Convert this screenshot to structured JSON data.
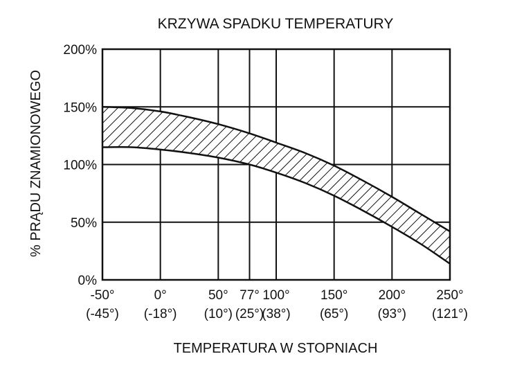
{
  "chart_data": {
    "type": "area",
    "title": "KRZYWA SPADKU TEMPERATURY",
    "xlabel": "TEMPERATURA W STOPNIACH",
    "ylabel": "% PRĄDU ZNAMIONOWEGO",
    "xlim": [
      -50,
      250
    ],
    "ylim": [
      0,
      200
    ],
    "grid": true,
    "x_gridlines": [
      -50,
      0,
      50,
      77,
      100,
      150,
      200,
      250
    ],
    "y_gridlines": [
      0,
      50,
      100,
      150,
      200
    ],
    "x_ticks": [
      {
        "value": -50,
        "label": "-50°",
        "sublabel": "(-45°)"
      },
      {
        "value": 0,
        "label": "0°",
        "sublabel": "(-18°)"
      },
      {
        "value": 50,
        "label": "50°",
        "sublabel": "(10°)"
      },
      {
        "value": 77,
        "label": "77°",
        "sublabel": "(25°)"
      },
      {
        "value": 100,
        "label": "100°",
        "sublabel": "(38°)"
      },
      {
        "value": 150,
        "label": "150°",
        "sublabel": "(65°)"
      },
      {
        "value": 200,
        "label": "200°",
        "sublabel": "(93°)"
      },
      {
        "value": 250,
        "label": "250°",
        "sublabel": "(121°)"
      }
    ],
    "y_ticks": [
      {
        "value": 0,
        "label": "0%"
      },
      {
        "value": 50,
        "label": "50%"
      },
      {
        "value": 100,
        "label": "100%"
      },
      {
        "value": 150,
        "label": "150%"
      },
      {
        "value": 200,
        "label": "200%"
      }
    ],
    "series": [
      {
        "x": [
          -50,
          -25,
          0,
          25,
          50,
          77,
          100,
          125,
          150,
          175,
          200,
          225,
          250
        ],
        "values": [
          150,
          149,
          146,
          141,
          135,
          127,
          119,
          110,
          99,
          86,
          72,
          57,
          42
        ]
      },
      {
        "x": [
          -50,
          -25,
          0,
          25,
          50,
          77,
          100,
          125,
          150,
          175,
          200,
          225,
          250
        ],
        "values": [
          115,
          115,
          113,
          110,
          106,
          100,
          93,
          84,
          73,
          60,
          46,
          31,
          14
        ]
      }
    ],
    "band_fill": "hatched",
    "colors": {
      "line": "#111111",
      "grid": "#111111",
      "hatch": "#111111",
      "background": "#ffffff"
    }
  }
}
